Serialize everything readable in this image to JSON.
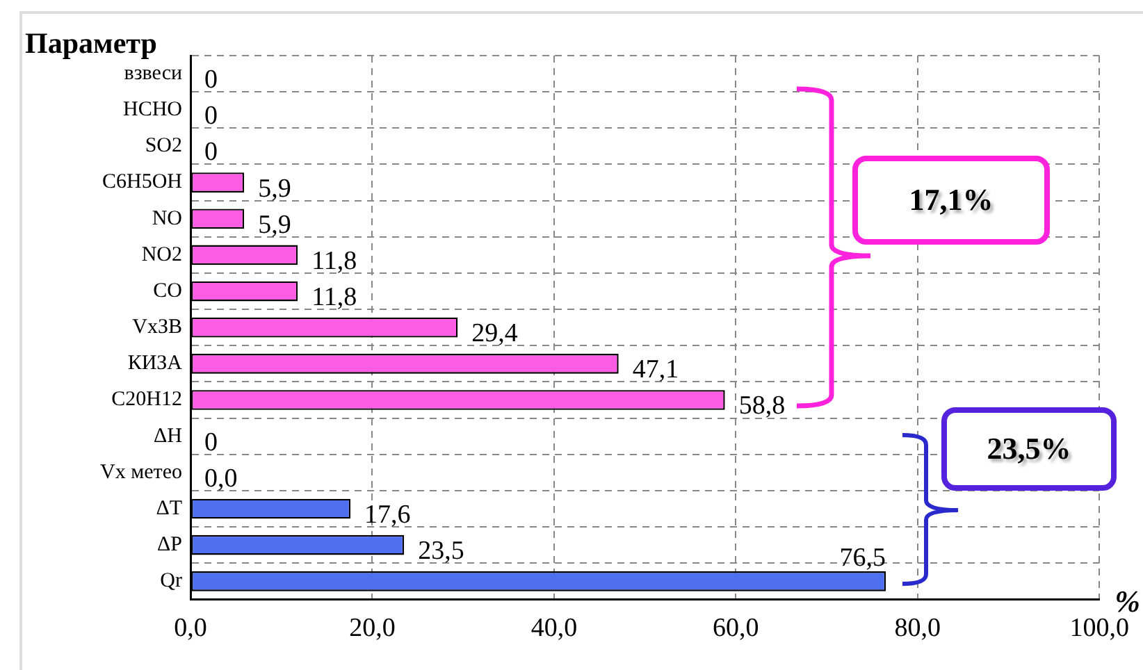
{
  "chart_data": {
    "type": "bar",
    "orientation": "horizontal",
    "ylabel": "Параметр",
    "xlabel": "%",
    "categories": [
      "взвеси",
      "HCHO",
      "SO2",
      "C6H5OH",
      "NO",
      "NO2",
      "CO",
      "VxЗВ",
      "КИЗА",
      "C20H12",
      "ΔH",
      "Vx метео",
      "ΔT",
      "ΔP",
      "Qr"
    ],
    "values": [
      0,
      0,
      0,
      5.9,
      5.9,
      11.8,
      11.8,
      29.4,
      47.1,
      58.8,
      0,
      0,
      17.6,
      23.5,
      76.5
    ],
    "colors": [
      "#ff5ce6",
      "#ff5ce6",
      "#ff5ce6",
      "#ff5ce6",
      "#ff5ce6",
      "#ff5ce6",
      "#ff5ce6",
      "#ff5ce6",
      "#ff5ce6",
      "#ff5ce6",
      "#4d6ff0",
      "#4d6ff0",
      "#4d6ff0",
      "#4d6ff0",
      "#4d6ff0"
    ],
    "value_labels": [
      "0",
      "0",
      "0",
      "5,9",
      "5,9",
      "11,8",
      "11,8",
      "29,4",
      "47,1",
      "58,8",
      "0",
      "0,0",
      "17,6",
      "23,5",
      "76,5"
    ],
    "xlim": [
      0,
      100
    ],
    "xticks": [
      {
        "value": 0,
        "label": "0,0"
      },
      {
        "value": 20,
        "label": "20,0"
      },
      {
        "value": 40,
        "label": "40,0"
      },
      {
        "value": 60,
        "label": "60,0"
      },
      {
        "value": 80,
        "label": "80,0"
      },
      {
        "value": 100,
        "label": "100,0"
      }
    ],
    "grid": true,
    "legend": false,
    "annotations": [
      "17,1%",
      "23,5%"
    ]
  }
}
